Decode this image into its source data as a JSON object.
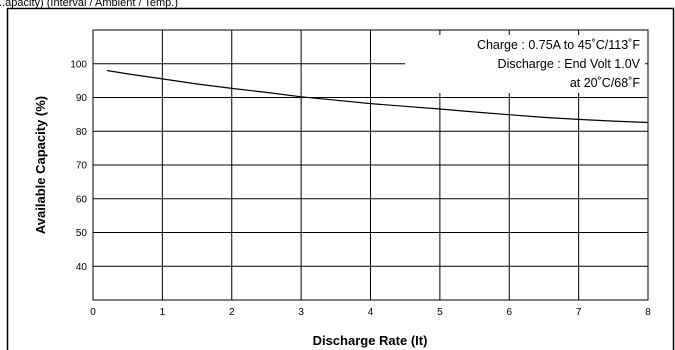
{
  "header_fragment": "...apacity) (Interval / Ambient / Temp.)",
  "chart_data": {
    "type": "line",
    "title": "",
    "xlabel": "Discharge Rate (It)",
    "ylabel": "Available Capacity (%)",
    "xlim": [
      0,
      8
    ],
    "ylim": [
      30,
      110
    ],
    "x_ticks": [
      "0",
      "1",
      "2",
      "3",
      "4",
      "5",
      "6",
      "7",
      "8"
    ],
    "y_ticks": [
      "40",
      "50",
      "60",
      "70",
      "80",
      "90",
      "100"
    ],
    "grid": true,
    "annotation": [
      "Charge : 0.75A to 45˚C/113˚F",
      "Discharge : End Volt 1.0V",
      "at 20˚C/68˚F"
    ],
    "series": [
      {
        "x": [
          0.2,
          0.5,
          1,
          1.5,
          2,
          2.5,
          3,
          3.5,
          4,
          4.5,
          5,
          5.5,
          6,
          6.5,
          7,
          7.5,
          8
        ],
        "y": [
          98,
          97,
          95.5,
          94,
          92.7,
          91.5,
          90.2,
          89.2,
          88.2,
          87.4,
          86.6,
          85.7,
          84.9,
          84.1,
          83.5,
          83.0,
          82.6
        ]
      }
    ],
    "line_color": "#000000"
  }
}
